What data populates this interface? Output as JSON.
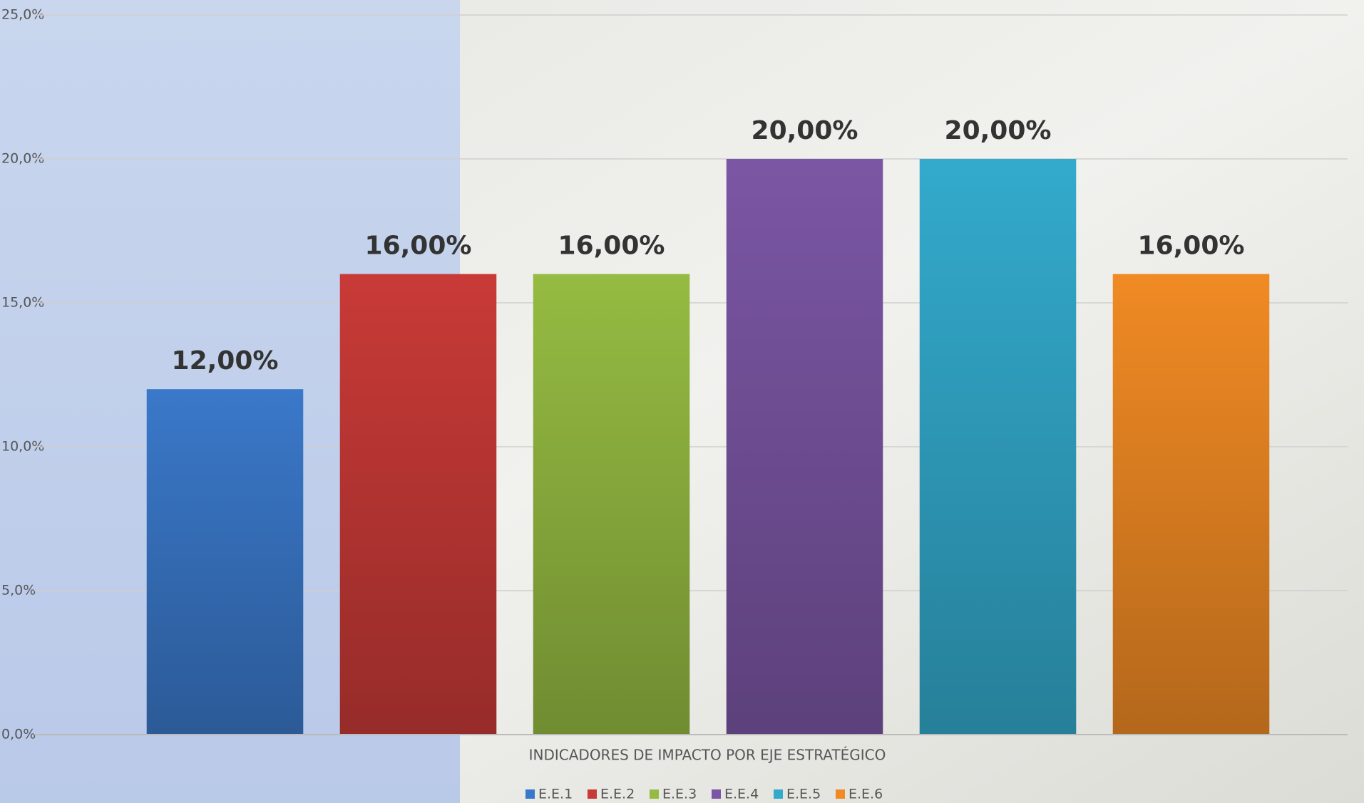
{
  "chart_data": {
    "type": "bar",
    "x_label": "INDICADORES DE IMPACTO POR EJE ESTRATÉGICO",
    "categories": [
      null
    ],
    "series": [
      {
        "name": "E.E.1",
        "color": "#3a78c9",
        "values": [
          12
        ],
        "value_labels": [
          "12,00%"
        ]
      },
      {
        "name": "E.E.2",
        "color": "#c83a37",
        "values": [
          16
        ],
        "value_labels": [
          "16,00%"
        ]
      },
      {
        "name": "E.E.3",
        "color": "#95bb42",
        "values": [
          16
        ],
        "value_labels": [
          "16,00%"
        ]
      },
      {
        "name": "E.E.4",
        "color": "#7b56a4",
        "values": [
          20
        ],
        "value_labels": [
          "20,00%"
        ]
      },
      {
        "name": "E.E.5",
        "color": "#33aacc",
        "values": [
          20
        ],
        "value_labels": [
          "20,00%"
        ]
      },
      {
        "name": "E.E.6",
        "color": "#f08a24",
        "values": [
          16
        ],
        "value_labels": [
          "16,00%"
        ]
      }
    ],
    "ylim": [
      0,
      25
    ],
    "yticks": [
      {
        "value": 0,
        "label": "0,0%"
      },
      {
        "value": 5,
        "label": "5,0%"
      },
      {
        "value": 10,
        "label": "10,0%"
      },
      {
        "value": 15,
        "label": "15,0%"
      },
      {
        "value": 20,
        "label": "20,0%"
      },
      {
        "value": 25,
        "label": "25,0%"
      }
    ],
    "grid": true,
    "legend": "bottom"
  }
}
